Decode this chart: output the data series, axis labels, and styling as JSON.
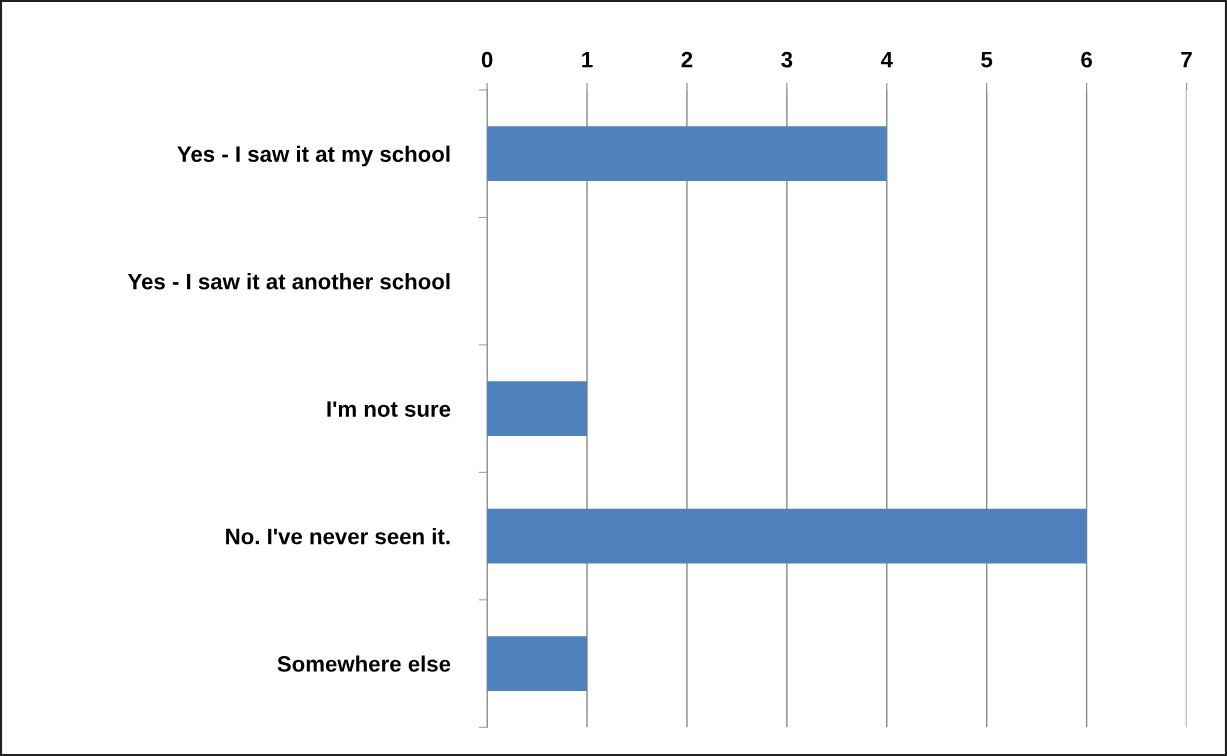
{
  "chart_data": {
    "type": "bar",
    "orientation": "horizontal",
    "categories": [
      "Yes - I saw it at my school",
      "Yes - I saw it at another school",
      "I'm not sure",
      "No. I've never seen it.",
      "Somewhere else"
    ],
    "values": [
      4,
      0,
      1,
      6,
      1
    ],
    "color": "#4f81bd",
    "xlim": [
      0,
      7
    ],
    "xticks": [
      0,
      1,
      2,
      3,
      4,
      5,
      6,
      7
    ],
    "grid": "x",
    "legend": false
  }
}
